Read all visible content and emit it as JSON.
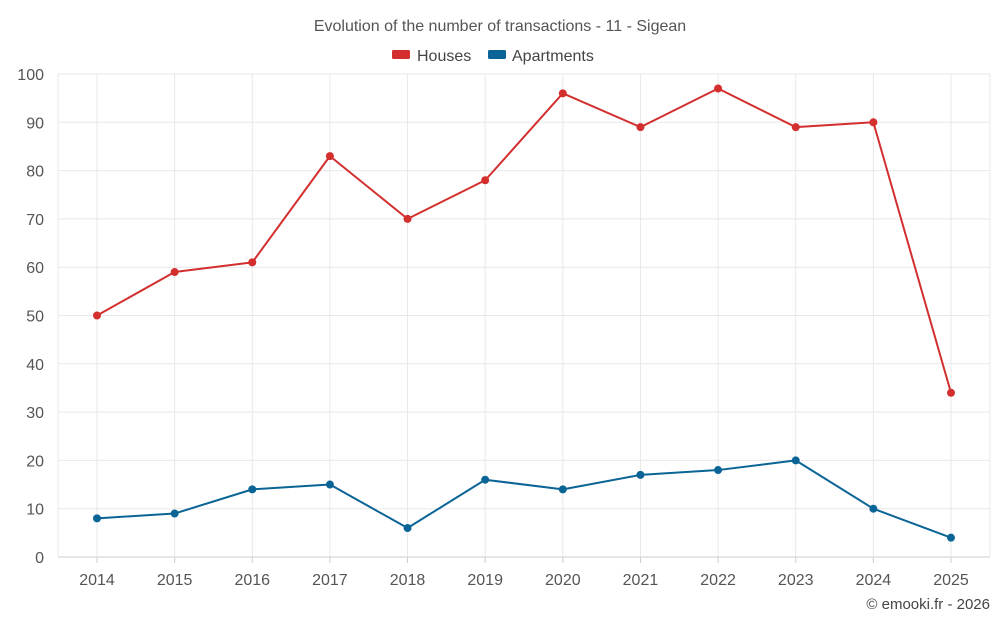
{
  "chart_data": {
    "type": "line",
    "title": "Evolution of the number of transactions - 11 - Sigean",
    "categories": [
      "2014",
      "2015",
      "2016",
      "2017",
      "2018",
      "2019",
      "2020",
      "2021",
      "2022",
      "2023",
      "2024",
      "2025"
    ],
    "series": [
      {
        "name": "Houses",
        "color": "#d32f2f",
        "values": [
          50,
          59,
          61,
          83,
          70,
          78,
          96,
          89,
          97,
          89,
          90,
          34
        ]
      },
      {
        "name": "Apartments",
        "color": "#0a6496",
        "values": [
          8,
          9,
          14,
          15,
          6,
          16,
          14,
          17,
          18,
          20,
          10,
          4
        ]
      }
    ],
    "ylim": [
      0,
      100
    ],
    "yticks": [
      0,
      10,
      20,
      30,
      40,
      50,
      60,
      70,
      80,
      90,
      100
    ],
    "xlabel": "",
    "ylabel": "",
    "grid": true,
    "legend_position": "top-center"
  },
  "credit": "© emooki.fr - 2026"
}
